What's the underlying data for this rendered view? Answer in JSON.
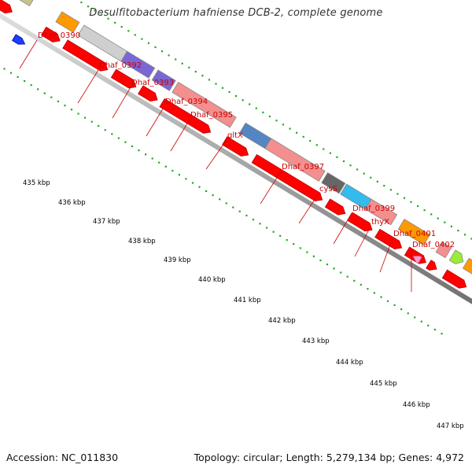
{
  "title": "Desulfitobacterium hafniense DCB-2, complete genome",
  "footer": {
    "accession": "Accession: NC_011830",
    "topology": "Topology: circular; Length: 5,279,134 bp; Genes: 4,972"
  },
  "colors": {
    "label": "#cc0000",
    "leader": "#cc0000",
    "cds": "#ff0000",
    "backbone": "#999999",
    "gc_dots": "#22aa22"
  },
  "gene_labels": [
    {
      "text": "Dhaf_0390"
    },
    {
      "text": "Dhaf_0392"
    },
    {
      "text": "Dhaf_0393"
    },
    {
      "text": "Dhaf_0394"
    },
    {
      "text": "Dhaf_0395"
    },
    {
      "text": "gltX"
    },
    {
      "text": "Dhaf_0397"
    },
    {
      "text": "cysS"
    },
    {
      "text": "Dhaf_0399"
    },
    {
      "text": "thyX"
    },
    {
      "text": "Dhaf_0401"
    },
    {
      "text": "Dhaf_0402"
    }
  ],
  "kbp_ticks": [
    "435 kbp",
    "436 kbp",
    "437 kbp",
    "438 kbp",
    "439 kbp",
    "440 kbp",
    "441 kbp",
    "442 kbp",
    "443 kbp",
    "444 kbp",
    "445 kbp",
    "446 kbp",
    "447 kbp"
  ]
}
